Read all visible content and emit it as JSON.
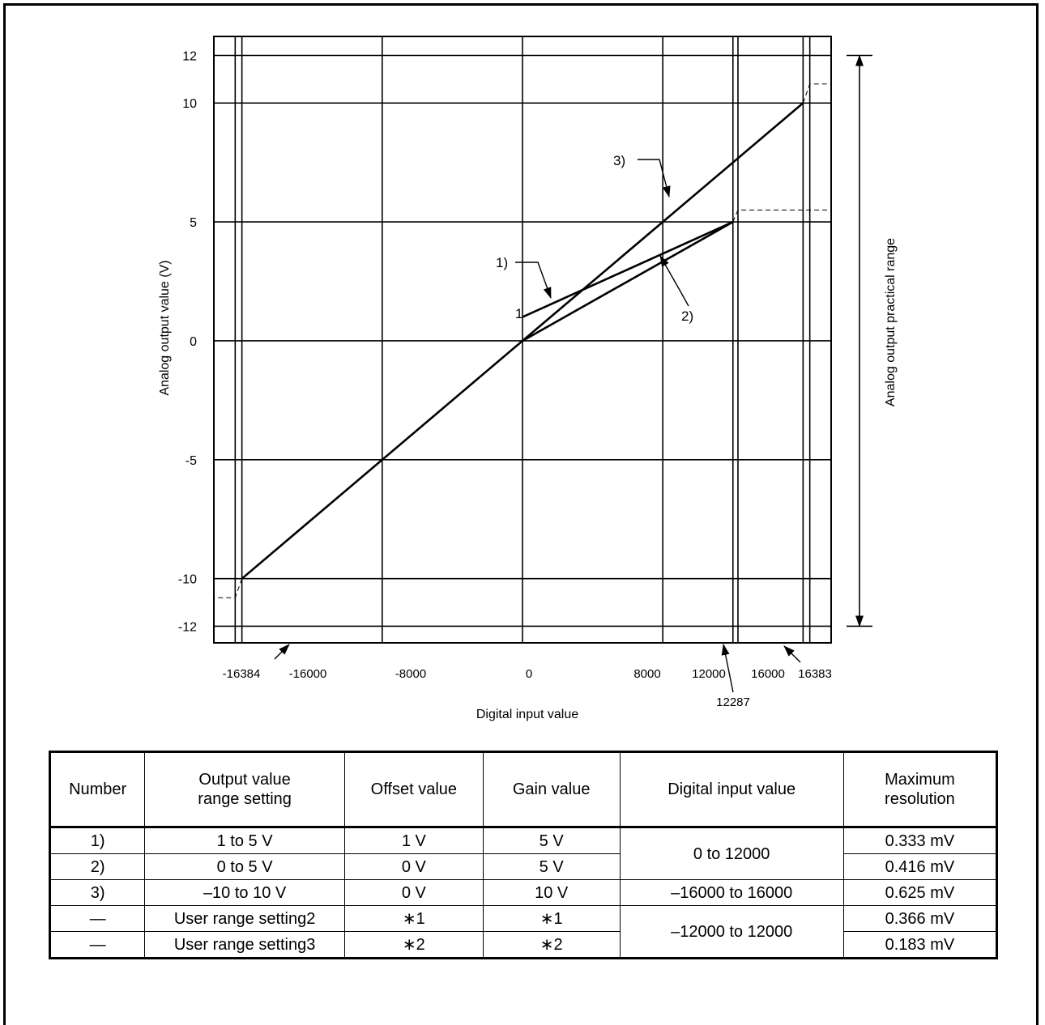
{
  "chart_data": {
    "type": "line",
    "xlabel": "Digital input value",
    "ylabel": "Analog output value (V)",
    "side_label": "Analog output practical range",
    "xlim": [
      -17600,
      17600
    ],
    "ylim": [
      -12.7,
      12.8
    ],
    "x_ticks": [
      -16384,
      -16000,
      -8000,
      0,
      8000,
      12000,
      16000,
      16383
    ],
    "x_tick_labels": [
      "-16384",
      "-16000",
      "-8000",
      "0",
      "8000",
      "12000",
      "16000",
      "16383"
    ],
    "extra_x_tick": {
      "value": 12287,
      "label": "12287"
    },
    "y_ticks": [
      12,
      10,
      5,
      0,
      -5,
      -10,
      -12
    ],
    "y_tick_labels": [
      "12",
      "10",
      "5",
      "0",
      "-5",
      "-10",
      "-12"
    ],
    "grid": true,
    "series": [
      {
        "name": "1)",
        "x": [
          0,
          12000
        ],
        "y": [
          1,
          5
        ]
      },
      {
        "name": "2)",
        "x": [
          0,
          12000
        ],
        "y": [
          0,
          5
        ]
      },
      {
        "name": "3)",
        "x": [
          -16000,
          16000
        ],
        "y": [
          -10,
          10
        ]
      }
    ],
    "saturation_dashed": [
      {
        "x": [
          12000,
          12287,
          20000
        ],
        "y": [
          5,
          5.5,
          5.5
        ]
      },
      {
        "x": [
          16000,
          16383,
          20000
        ],
        "y": [
          10,
          10.8,
          10.8
        ]
      },
      {
        "x": [
          -16000,
          -16384,
          -20000
        ],
        "y": [
          -10,
          -10.8,
          -10.8
        ]
      }
    ],
    "annotations": {
      "point_label": "1",
      "callouts": [
        "1)",
        "2)",
        "3)"
      ]
    }
  },
  "table": {
    "headers": [
      [
        "Number"
      ],
      [
        "Output value",
        "range setting"
      ],
      [
        "Offset value"
      ],
      [
        "Gain value"
      ],
      [
        "Digital input value"
      ],
      [
        "Maximum",
        "resolution"
      ]
    ],
    "rows": [
      [
        "1)",
        "1 to 5 V",
        "1 V",
        "5 V",
        "0 to 12000",
        "0.333 mV"
      ],
      [
        "2)",
        "0 to 5 V",
        "0 V",
        "5 V",
        null,
        "0.416  mV"
      ],
      [
        "3)",
        "–10 to 10 V",
        "0 V",
        "10 V",
        "–16000 to 16000",
        "0.625 mV"
      ],
      [
        "—",
        "User range setting2",
        "∗1",
        "∗1",
        "–12000 to 12000",
        "0.366 mV"
      ],
      [
        "—",
        "User range setting3",
        "∗2",
        "∗2",
        null,
        "0.183 mV"
      ]
    ]
  }
}
